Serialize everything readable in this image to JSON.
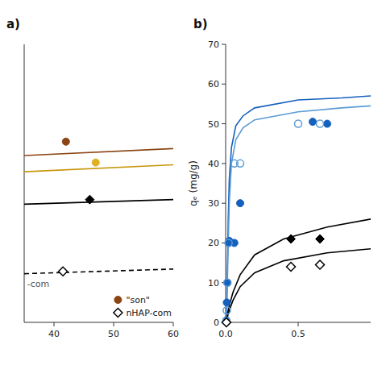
{
  "chart_data": [
    {
      "type": "scatter",
      "title": "a)",
      "annotations": [
        "-com"
      ],
      "xlim": [
        35,
        60
      ],
      "ylim": [
        20,
        80
      ],
      "xticks": [
        40,
        50,
        60
      ],
      "tick_labels": "x",
      "grid": false,
      "legend": "lower right",
      "series": [
        {
          "type": "line",
          "color": "#8B4513",
          "x": [
            35,
            60
          ],
          "values": [
            56.0,
            57.5
          ]
        },
        {
          "type": "line",
          "color": "#C8960C",
          "x": [
            35,
            60
          ],
          "values": [
            52.5,
            54.0
          ]
        },
        {
          "type": "line",
          "color": "#000000",
          "x": [
            35,
            60
          ],
          "values": [
            45.5,
            46.5
          ]
        },
        {
          "type": "line",
          "color": "#000000",
          "line_style": "dashed",
          "x": [
            35,
            60
          ],
          "values": [
            30.5,
            31.5
          ]
        },
        {
          "type": "scatter",
          "name": "\"son\"",
          "color": "#8B4513",
          "marker": "circle",
          "x": [
            42.0
          ],
          "values": [
            59.0
          ]
        },
        {
          "type": "scatter",
          "color": "#E0B020",
          "marker": "circle",
          "x": [
            47.0
          ],
          "values": [
            54.5
          ]
        },
        {
          "type": "scatter",
          "color": "#000000",
          "marker": "diamond",
          "x": [
            46.0
          ],
          "values": [
            46.5
          ]
        },
        {
          "type": "scatter",
          "name": "nHAP-com",
          "color": "#000000",
          "marker": "open-diamond",
          "x": [
            41.5
          ],
          "values": [
            31.0
          ]
        }
      ]
    },
    {
      "type": "scatter",
      "title": "b)",
      "y_label": "qₑ (mg/g)",
      "xlim": [
        0.0,
        1.0
      ],
      "ylim": [
        0,
        70
      ],
      "xticks": [
        {
          "value": 0.0,
          "label": "0.0"
        },
        0.5
      ],
      "yticks": [
        0,
        10,
        20,
        30,
        40,
        50,
        60,
        70
      ],
      "grid": false,
      "series": [
        {
          "type": "line",
          "color": "#1560BD",
          "x": [
            0.001,
            0.005,
            0.008,
            0.012,
            0.018,
            0.025,
            0.04,
            0.07,
            0.12,
            0.2,
            0.5,
            0.8,
            1.0
          ],
          "values": [
            0.2,
            2.0,
            6.0,
            14.0,
            26.0,
            36.0,
            44.0,
            49.5,
            52.0,
            54.0,
            56.0,
            56.5,
            57.0
          ]
        },
        {
          "type": "line",
          "color": "#5B9BD5",
          "x": [
            0.001,
            0.005,
            0.008,
            0.012,
            0.018,
            0.025,
            0.04,
            0.07,
            0.12,
            0.2,
            0.5,
            0.8,
            1.0
          ],
          "values": [
            0.1,
            1.2,
            4.0,
            10.0,
            20.0,
            30.0,
            40.0,
            46.0,
            49.0,
            51.0,
            53.0,
            54.0,
            54.5
          ]
        },
        {
          "type": "line",
          "color": "#000000",
          "x": [
            0.001,
            0.005,
            0.01,
            0.02,
            0.05,
            0.1,
            0.2,
            0.4,
            0.7,
            1.0
          ],
          "values": [
            0.05,
            0.5,
            1.5,
            3.5,
            7.5,
            12.0,
            17.0,
            21.0,
            24.0,
            26.0
          ]
        },
        {
          "type": "line",
          "color": "#000000",
          "x": [
            0.001,
            0.005,
            0.01,
            0.02,
            0.05,
            0.1,
            0.2,
            0.4,
            0.7,
            1.0
          ],
          "values": [
            0.03,
            0.3,
            0.9,
            2.5,
            5.5,
            9.0,
            12.5,
            15.5,
            17.5,
            18.5
          ]
        },
        {
          "type": "scatter",
          "color": "#1560BD",
          "marker": "circle",
          "x": [
            0.005,
            0.008,
            0.012,
            0.02,
            0.025,
            0.06,
            0.1,
            0.6,
            0.7
          ],
          "values": [
            0.5,
            5.0,
            10.0,
            20.0,
            20.5,
            20.0,
            30.0,
            50.5,
            50.0
          ]
        },
        {
          "type": "scatter",
          "color": "#5B9BD5",
          "marker": "open-circle",
          "x": [
            0.005,
            0.008,
            0.012,
            0.02,
            0.06,
            0.1,
            0.5,
            0.65
          ],
          "values": [
            0.3,
            3.0,
            10.0,
            20.0,
            40.0,
            40.0,
            50.0,
            50.0
          ]
        },
        {
          "type": "scatter",
          "color": "#000000",
          "marker": "diamond",
          "x": [
            0.005,
            0.45,
            0.65
          ],
          "values": [
            0.0,
            21.0,
            21.0
          ]
        },
        {
          "type": "scatter",
          "color": "#000000",
          "marker": "open-diamond",
          "x": [
            0.005,
            0.45,
            0.65
          ],
          "values": [
            0.0,
            14.0,
            14.5
          ]
        }
      ]
    }
  ]
}
